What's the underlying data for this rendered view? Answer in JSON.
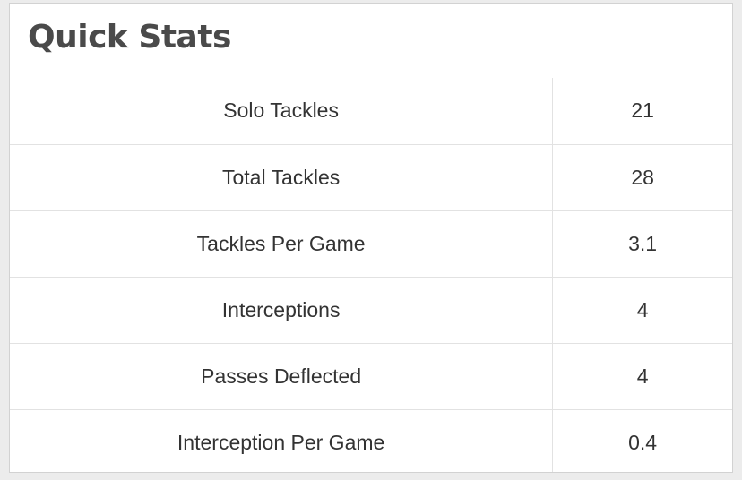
{
  "card": {
    "title": "Quick Stats"
  },
  "stats": [
    {
      "label": "Solo Tackles",
      "value": "21"
    },
    {
      "label": "Total Tackles",
      "value": "28"
    },
    {
      "label": "Tackles Per Game",
      "value": "3.1"
    },
    {
      "label": "Interceptions",
      "value": "4"
    },
    {
      "label": "Passes Deflected",
      "value": "4"
    },
    {
      "label": "Interception Per Game",
      "value": "0.4"
    }
  ],
  "colors": {
    "title": "#4a4a4a",
    "text": "#333333",
    "border": "#e2e2e2",
    "background": "#ececec",
    "card": "#ffffff"
  }
}
